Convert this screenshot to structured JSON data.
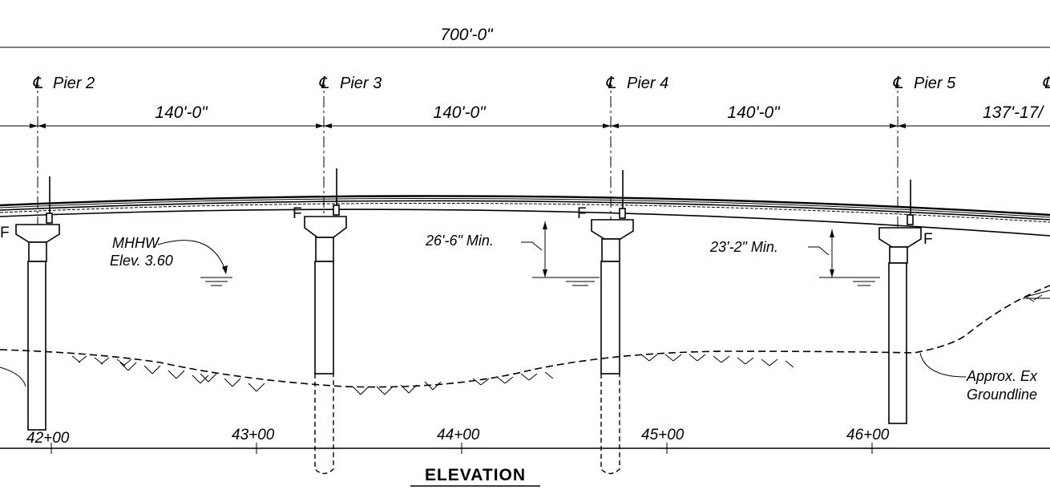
{
  "overall_dimension": "700'-0\"",
  "piers": [
    {
      "label": "Pier 2",
      "span_right": "140'-0\""
    },
    {
      "label": "Pier 3",
      "span_right": "140'-0\""
    },
    {
      "label": "Pier 4",
      "span_right": "140'-0\""
    },
    {
      "label": "Pier 5",
      "span_right": "137'-17/"
    }
  ],
  "centerline_symbol": "℄",
  "bearing_marks": [
    "F",
    "F",
    "F",
    "F",
    "F"
  ],
  "clearances": [
    {
      "label": "26'-6\" Min."
    },
    {
      "label": "23'-2\" Min."
    }
  ],
  "water_level": {
    "line1": "MHHW",
    "line2": "Elev. 3.60"
  },
  "groundline": {
    "line1": "Approx. Ex",
    "line2": "Groundline"
  },
  "stations": [
    "42+00",
    "43+00",
    "44+00",
    "45+00",
    "46+00"
  ],
  "view_title": "ELEVATION"
}
